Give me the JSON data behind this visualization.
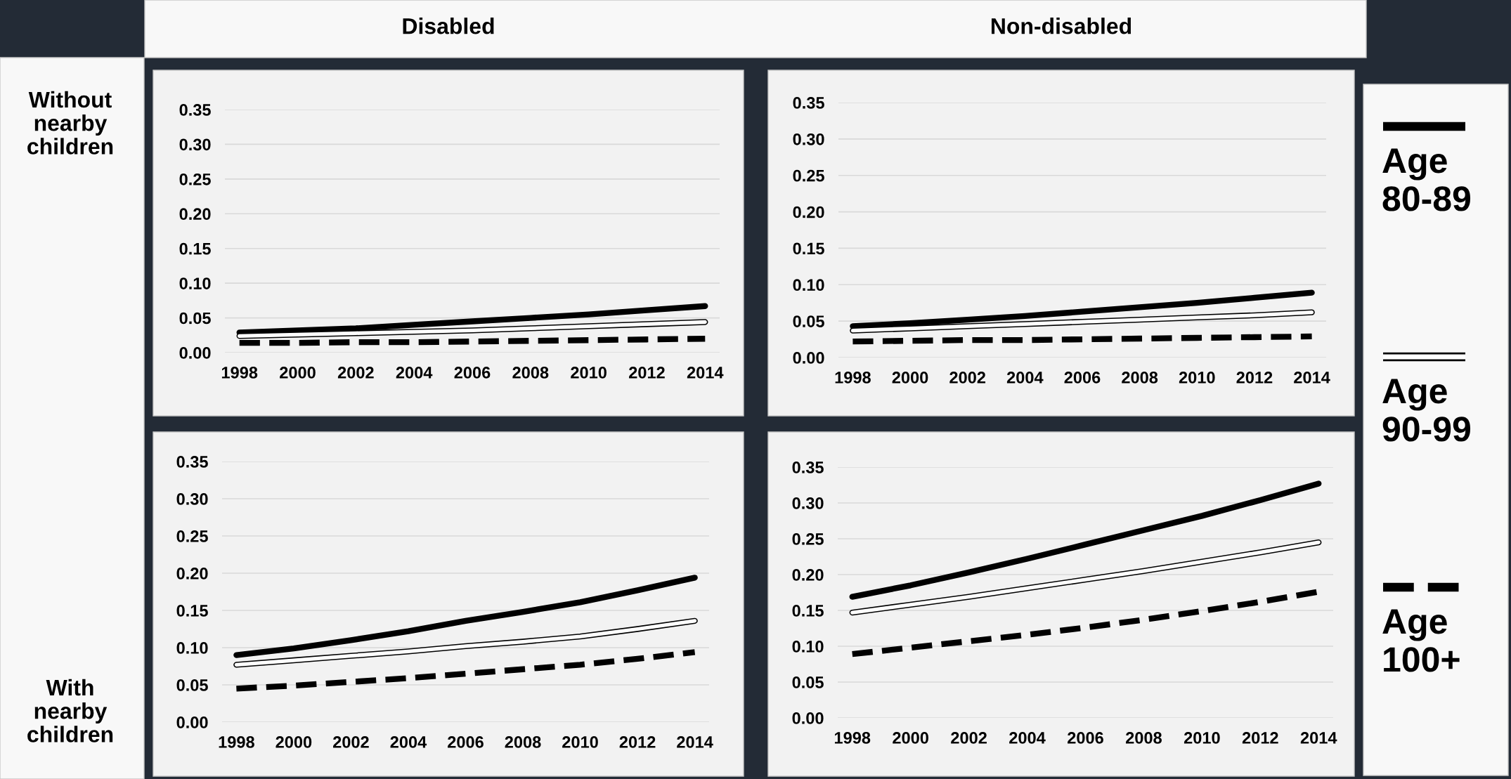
{
  "chart_data": [
    {
      "type": "line",
      "title": "Disabled",
      "ylabel": "Without nearby children",
      "x": [
        1998,
        2000,
        2002,
        2004,
        2006,
        2008,
        2010,
        2012,
        2014
      ],
      "xlim": [
        1997.5,
        2014.5
      ],
      "xticks": [
        1998,
        2000,
        2002,
        2004,
        2006,
        2008,
        2010,
        2012,
        2014
      ],
      "ylim": [
        0,
        0.35
      ],
      "yticks": [
        {
          "value": 0,
          "label": "0.00"
        },
        {
          "value": 0.05,
          "label": "0.05"
        },
        {
          "value": 0.1,
          "label": "0.10"
        },
        {
          "value": 0.15,
          "label": "0.15"
        },
        {
          "value": 0.2,
          "label": "0.20"
        },
        {
          "value": 0.25,
          "label": "0.25"
        },
        {
          "value": 0.3,
          "label": "0.30"
        },
        {
          "value": 0.35,
          "label": "0.35"
        }
      ],
      "grid": "y",
      "marker": "none",
      "series": [
        {
          "color": "#000000",
          "line_style": "solid",
          "values": [
            0.029,
            0.032,
            0.035,
            0.04,
            0.045,
            0.05,
            0.055,
            0.061,
            0.067
          ]
        },
        {
          "color": "#000000",
          "line_style": "solid",
          "values": [
            0.024,
            0.026,
            0.028,
            0.03,
            0.032,
            0.035,
            0.038,
            0.041,
            0.044
          ]
        },
        {
          "color": "#000000",
          "line_style": "dashed",
          "values": [
            0.014,
            0.014,
            0.015,
            0.015,
            0.016,
            0.017,
            0.018,
            0.019,
            0.02
          ]
        }
      ]
    },
    {
      "type": "line",
      "title": "Non-disabled",
      "x": [
        1998,
        2000,
        2002,
        2004,
        2006,
        2008,
        2010,
        2012,
        2014
      ],
      "xlim": [
        1997.5,
        2014.5
      ],
      "xticks": [
        1998,
        2000,
        2002,
        2004,
        2006,
        2008,
        2010,
        2012,
        2014
      ],
      "ylim": [
        0,
        0.35
      ],
      "yticks": [
        {
          "value": 0,
          "label": "0.00"
        },
        {
          "value": 0.05,
          "label": "0.05"
        },
        {
          "value": 0.1,
          "label": "0.10"
        },
        {
          "value": 0.15,
          "label": "0.15"
        },
        {
          "value": 0.2,
          "label": "0.20"
        },
        {
          "value": 0.25,
          "label": "0.25"
        },
        {
          "value": 0.3,
          "label": "0.30"
        },
        {
          "value": 0.35,
          "label": "0.35"
        }
      ],
      "grid": "y",
      "marker": "none",
      "legend": "right",
      "series": [
        {
          "name": "Age 80-89",
          "color": "#000000",
          "line_style": "solid",
          "values": [
            0.043,
            0.047,
            0.052,
            0.057,
            0.063,
            0.069,
            0.075,
            0.082,
            0.089
          ]
        },
        {
          "name": "Age 90-99",
          "color": "#000000",
          "line_style": "solid",
          "values": [
            0.037,
            0.04,
            0.043,
            0.046,
            0.049,
            0.052,
            0.055,
            0.058,
            0.062
          ]
        },
        {
          "name": "Age 100+",
          "color": "#000000",
          "line_style": "dashed",
          "values": [
            0.022,
            0.023,
            0.024,
            0.024,
            0.025,
            0.026,
            0.027,
            0.028,
            0.029
          ]
        }
      ]
    },
    {
      "type": "line",
      "ylabel": "With nearby children",
      "x": [
        1998,
        2000,
        2002,
        2004,
        2006,
        2008,
        2010,
        2012,
        2014
      ],
      "xlim": [
        1997.5,
        2014.5
      ],
      "xticks": [
        1998,
        2000,
        2002,
        2004,
        2006,
        2008,
        2010,
        2012,
        2014
      ],
      "ylim": [
        0,
        0.35
      ],
      "yticks": [
        {
          "value": 0,
          "label": "0.00"
        },
        {
          "value": 0.05,
          "label": "0.05"
        },
        {
          "value": 0.1,
          "label": "0.10"
        },
        {
          "value": 0.15,
          "label": "0.15"
        },
        {
          "value": 0.2,
          "label": "0.20"
        },
        {
          "value": 0.25,
          "label": "0.25"
        },
        {
          "value": 0.3,
          "label": "0.30"
        },
        {
          "value": 0.35,
          "label": "0.35"
        }
      ],
      "grid": "y",
      "marker": "none",
      "series": [
        {
          "color": "#000000",
          "line_style": "solid",
          "values": [
            0.09,
            0.099,
            0.11,
            0.122,
            0.136,
            0.148,
            0.161,
            0.177,
            0.194
          ]
        },
        {
          "color": "#000000",
          "line_style": "solid",
          "values": [
            0.077,
            0.083,
            0.089,
            0.095,
            0.102,
            0.108,
            0.115,
            0.125,
            0.136
          ]
        },
        {
          "color": "#000000",
          "line_style": "dashed",
          "values": [
            0.045,
            0.049,
            0.054,
            0.059,
            0.065,
            0.071,
            0.077,
            0.085,
            0.094
          ]
        }
      ]
    },
    {
      "type": "line",
      "x": [
        1998,
        2000,
        2002,
        2004,
        2006,
        2008,
        2010,
        2012,
        2014
      ],
      "xlim": [
        1997.5,
        2014.5
      ],
      "xticks": [
        1998,
        2000,
        2002,
        2004,
        2006,
        2008,
        2010,
        2012,
        2014
      ],
      "ylim": [
        0,
        0.35
      ],
      "yticks": [
        {
          "value": 0,
          "label": "0.00"
        },
        {
          "value": 0.05,
          "label": "0.05"
        },
        {
          "value": 0.1,
          "label": "0.10"
        },
        {
          "value": 0.15,
          "label": "0.15"
        },
        {
          "value": 0.2,
          "label": "0.20"
        },
        {
          "value": 0.25,
          "label": "0.25"
        },
        {
          "value": 0.3,
          "label": "0.30"
        },
        {
          "value": 0.35,
          "label": "0.35"
        }
      ],
      "grid": "y",
      "marker": "none",
      "series": [
        {
          "color": "#000000",
          "line_style": "solid",
          "values": [
            0.169,
            0.185,
            0.203,
            0.222,
            0.242,
            0.262,
            0.282,
            0.304,
            0.327
          ]
        },
        {
          "color": "#000000",
          "line_style": "solid",
          "values": [
            0.147,
            0.158,
            0.169,
            0.181,
            0.193,
            0.205,
            0.218,
            0.231,
            0.245
          ]
        },
        {
          "color": "#000000",
          "line_style": "dashed",
          "values": [
            0.089,
            0.098,
            0.107,
            0.116,
            0.126,
            0.137,
            0.149,
            0.162,
            0.176
          ]
        }
      ]
    }
  ]
}
